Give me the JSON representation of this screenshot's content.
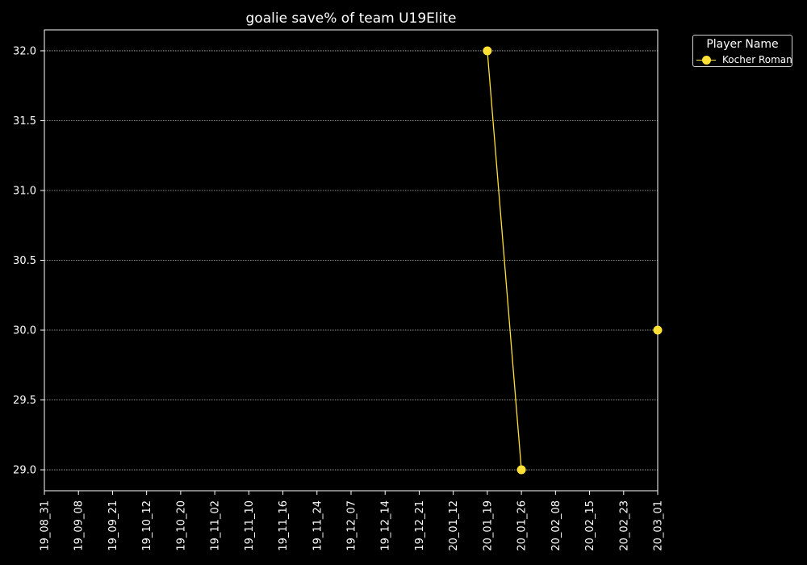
{
  "chart_data": {
    "type": "line",
    "title": "goalie save% of team U19Elite",
    "xlabel": "",
    "ylabel": "",
    "categories": [
      "19_08_31",
      "19_09_08",
      "19_09_21",
      "19_10_12",
      "19_10_20",
      "19_11_02",
      "19_11_10",
      "19_11_16",
      "19_11_24",
      "19_12_07",
      "19_12_14",
      "19_12_21",
      "20_01_12",
      "20_01_19",
      "20_01_26",
      "20_02_08",
      "20_02_15",
      "20_02_23",
      "20_03_01"
    ],
    "ylim": [
      28.85,
      32.15
    ],
    "yticks": [
      "29.0",
      "29.5",
      "30.0",
      "30.5",
      "31.0",
      "31.5",
      "32.0"
    ],
    "ytick_values": [
      29.0,
      29.5,
      30.0,
      30.5,
      31.0,
      31.5,
      32.0
    ],
    "grid": true,
    "legend": {
      "title": "Player Name",
      "placement": "top-right outside"
    },
    "series": [
      {
        "name": "Kocher Roman",
        "color": "#ffe135",
        "points": [
          {
            "x": "20_01_19",
            "y": 32.0
          },
          {
            "x": "20_01_26",
            "y": 29.0
          },
          {
            "x": "20_03_01",
            "y": 30.0
          }
        ],
        "segments": [
          [
            "20_01_19",
            "20_01_26"
          ]
        ]
      }
    ]
  }
}
